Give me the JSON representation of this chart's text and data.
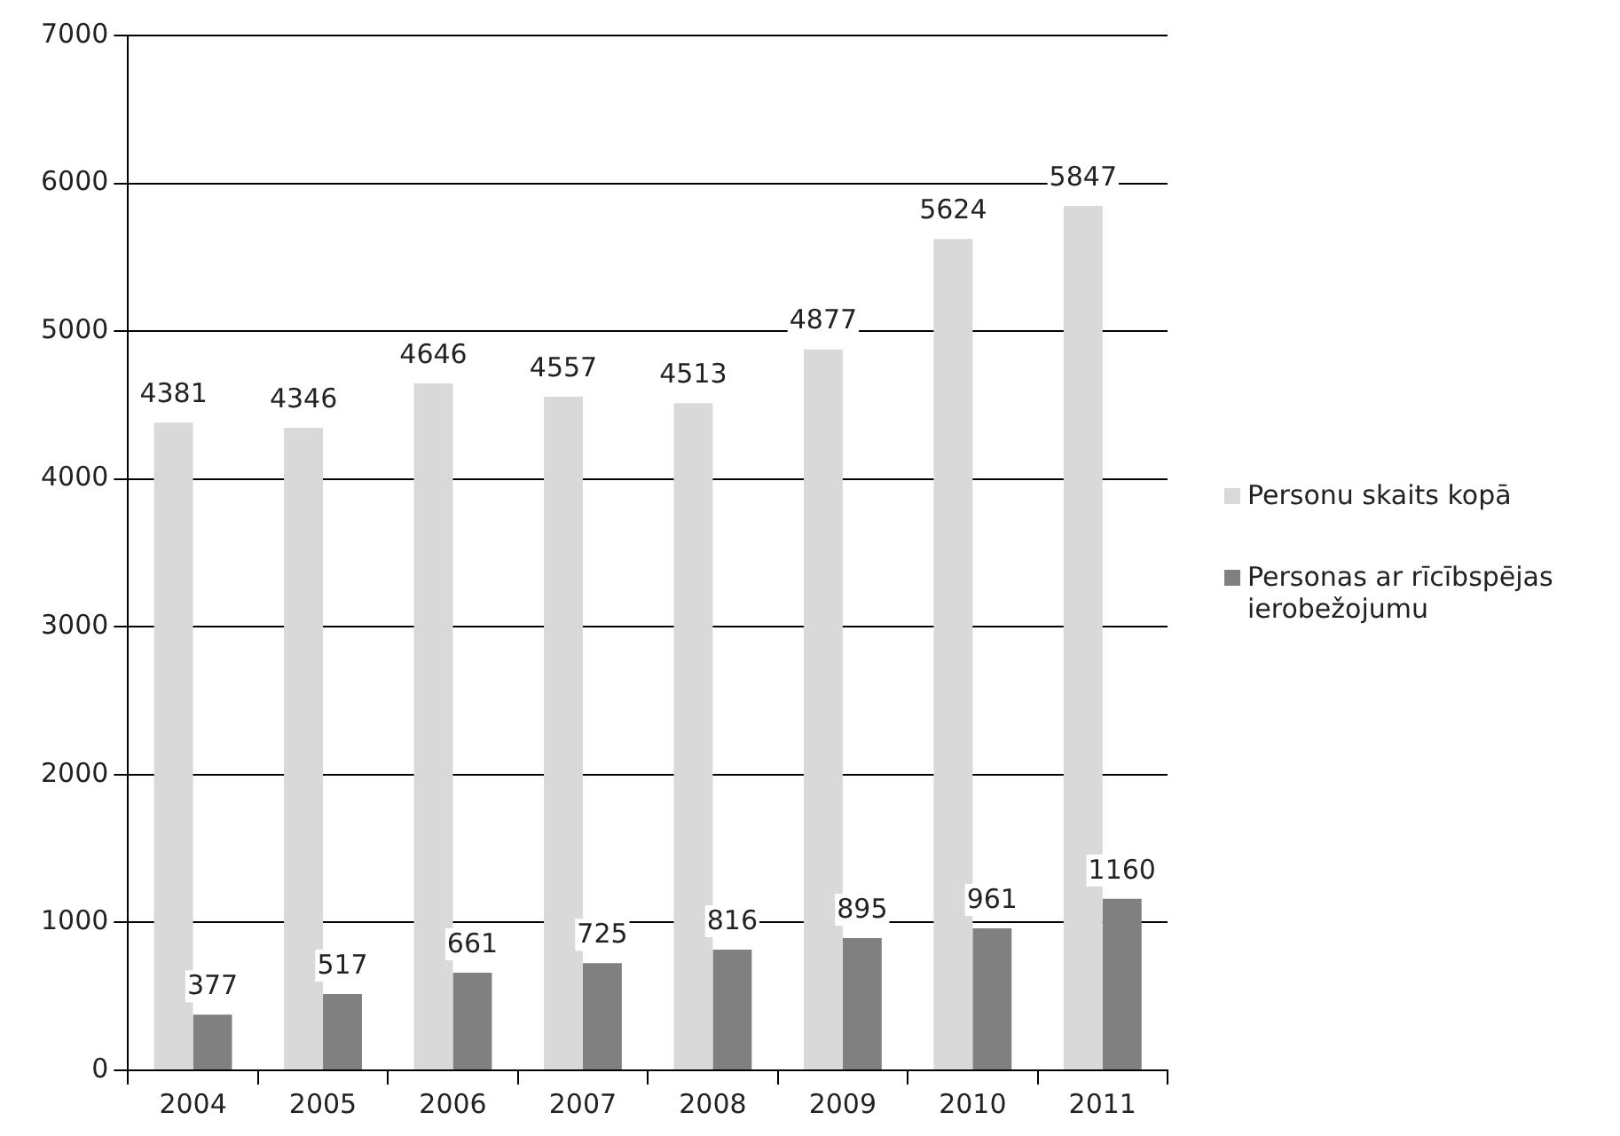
{
  "chart_data": {
    "type": "bar",
    "categories": [
      "2004",
      "2005",
      "2006",
      "2007",
      "2008",
      "2009",
      "2010",
      "2011"
    ],
    "series": [
      {
        "name": "Personu skaits kopā",
        "color": "#d9d9d9",
        "values": [
          4381,
          4346,
          4646,
          4557,
          4513,
          4877,
          5624,
          5847
        ]
      },
      {
        "name": "Personas ar rīcībspējas ierobežojumu",
        "color": "#808080",
        "values": [
          377,
          517,
          661,
          725,
          816,
          895,
          961,
          1160
        ]
      }
    ],
    "ylim": [
      0,
      7000
    ],
    "yticks": [
      0,
      1000,
      2000,
      3000,
      4000,
      5000,
      6000,
      7000
    ],
    "grid": "y",
    "legend": "right",
    "data_labels": true
  }
}
